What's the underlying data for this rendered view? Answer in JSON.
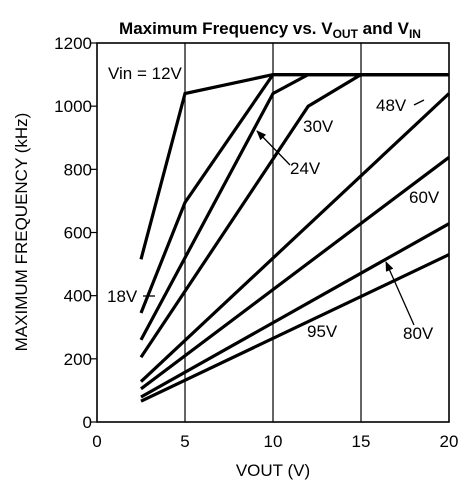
{
  "chart_data": {
    "type": "line",
    "title": {
      "main": "Maximum Frequency vs. V",
      "sub1": "OUT",
      "mid": " and V",
      "sub2": "IN"
    },
    "xlabel": "VOUT (V)",
    "ylabel": "MAXIMUM FREQUENCY (kHz)",
    "xlim": [
      0,
      20
    ],
    "ylim": [
      0,
      1200
    ],
    "x_ticks": [
      0,
      5,
      10,
      15,
      20
    ],
    "y_ticks": [
      0,
      200,
      400,
      600,
      800,
      1000,
      1200
    ],
    "grid": "vertical-only",
    "legend": "none",
    "series": [
      {
        "name": "Vin = 12V",
        "points": [
          [
            2.5,
            515
          ],
          [
            5,
            1040
          ],
          [
            10,
            1100
          ],
          [
            20,
            1100
          ]
        ]
      },
      {
        "name": "18V",
        "points": [
          [
            2.5,
            345
          ],
          [
            5,
            695
          ],
          [
            10,
            1100
          ],
          [
            20,
            1100
          ]
        ]
      },
      {
        "name": "24V",
        "points": [
          [
            2.5,
            260
          ],
          [
            10,
            1040
          ],
          [
            12,
            1100
          ],
          [
            20,
            1100
          ]
        ]
      },
      {
        "name": "30V",
        "points": [
          [
            2.5,
            205
          ],
          [
            12,
            1000
          ],
          [
            15,
            1100
          ],
          [
            20,
            1100
          ]
        ]
      },
      {
        "name": "48V",
        "points": [
          [
            2.5,
            128
          ],
          [
            20,
            1040
          ]
        ]
      },
      {
        "name": "60V",
        "points": [
          [
            2.5,
            105
          ],
          [
            20,
            838
          ]
        ]
      },
      {
        "name": "80V",
        "points": [
          [
            2.5,
            79
          ],
          [
            20,
            628
          ]
        ]
      },
      {
        "name": "95V",
        "points": [
          [
            2.5,
            66
          ],
          [
            20,
            530
          ]
        ]
      }
    ],
    "annotations": [
      "Vin = 12V",
      "18V",
      "24V",
      "30V",
      "48V",
      "60V",
      "80V",
      "95V"
    ]
  }
}
